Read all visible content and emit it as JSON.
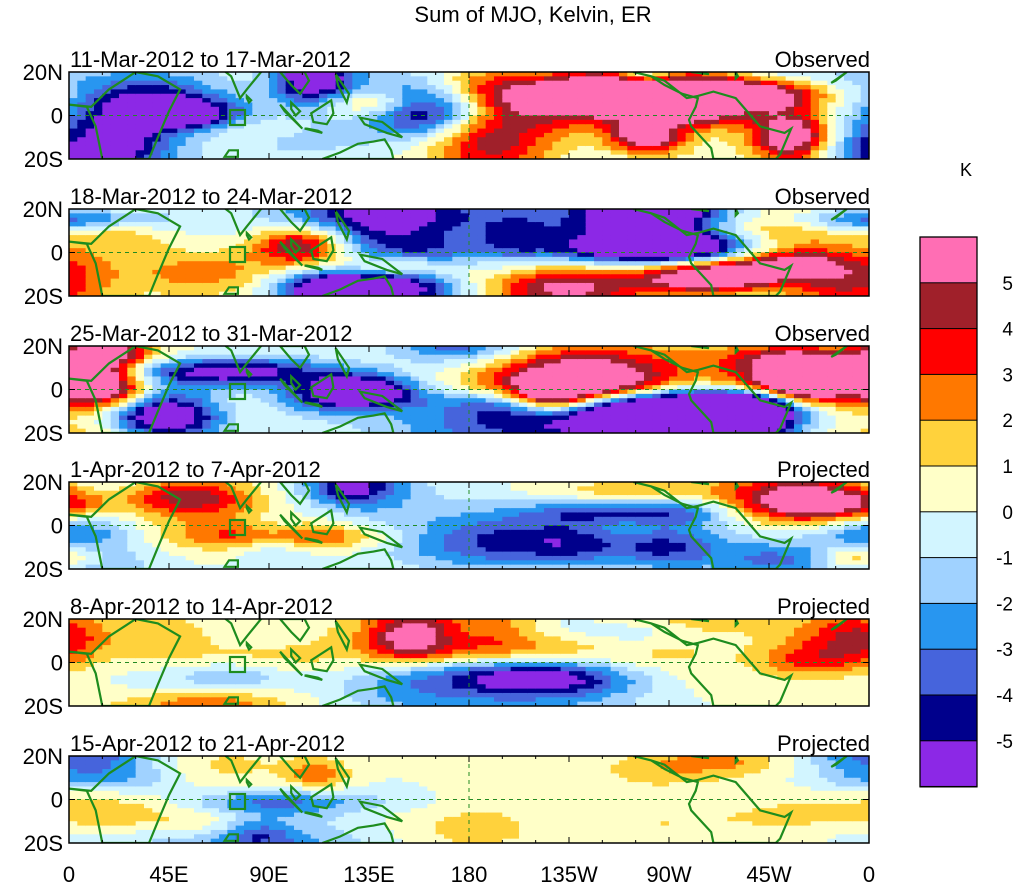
{
  "title": "Sum of MJO, Kelvin, ER",
  "panels": [
    {
      "date_range": "11-Mar-2012 to 17-Mar-2012",
      "status": "Observed",
      "seed": 11,
      "amp": 1.0
    },
    {
      "date_range": "18-Mar-2012 to 24-Mar-2012",
      "status": "Observed",
      "seed": 18,
      "amp": 1.0
    },
    {
      "date_range": "25-Mar-2012 to 31-Mar-2012",
      "status": "Observed",
      "seed": 25,
      "amp": 0.95
    },
    {
      "date_range": "1-Apr-2012 to 7-Apr-2012",
      "status": "Projected",
      "seed": 1,
      "amp": 0.7
    },
    {
      "date_range": "8-Apr-2012 to 14-Apr-2012",
      "status": "Projected",
      "seed": 8,
      "amp": 0.55
    },
    {
      "date_range": "15-Apr-2012 to 21-Apr-2012",
      "status": "Projected",
      "seed": 15,
      "amp": 0.4
    }
  ],
  "y_ticks": [
    "20N",
    "0",
    "20S"
  ],
  "x_ticks": [
    "0",
    "45E",
    "90E",
    "135E",
    "180",
    "135W",
    "90W",
    "45W",
    "0"
  ],
  "colorbar": {
    "unit": "K",
    "labels": [
      "5",
      "4",
      "3",
      "2",
      "1",
      "0",
      "-1",
      "-2",
      "-3",
      "-4",
      "-5"
    ],
    "colors": [
      "#ff6eb4",
      "#a0202a",
      "#ff0000",
      "#ff7800",
      "#ffd23c",
      "#ffffc8",
      "#d2f5ff",
      "#a0d2ff",
      "#2896f0",
      "#4664dc",
      "#00008c",
      "#8c28e6"
    ]
  },
  "map_colors": {
    "land": "#1e8c1e",
    "grid": "#228b22"
  }
}
